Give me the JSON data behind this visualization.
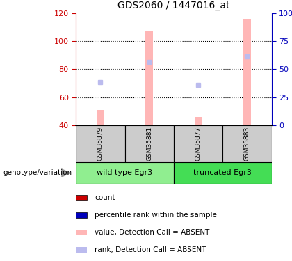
{
  "title": "GDS2060 / 1447016_at",
  "samples": [
    "GSM35879",
    "GSM35881",
    "GSM35877",
    "GSM35883"
  ],
  "groups": [
    {
      "name": "wild type Egr3",
      "color": "#90EE90"
    },
    {
      "name": "truncated Egr3",
      "color": "#44DD55"
    }
  ],
  "bar_values": [
    51,
    107,
    46,
    116
  ],
  "bar_base": 40,
  "rank_dots": [
    71,
    85,
    69,
    89
  ],
  "ylim_left": [
    40,
    120
  ],
  "ylim_right": [
    0,
    100
  ],
  "left_ticks": [
    40,
    60,
    80,
    100,
    120
  ],
  "right_ticks": [
    0,
    25,
    50,
    75,
    100
  ],
  "bar_color_absent": "#FFB6B6",
  "rank_color_absent": "#BBBBEE",
  "left_tick_color": "#CC0000",
  "right_tick_color": "#0000BB",
  "sample_box_color": "#CCCCCC",
  "legend_items": [
    {
      "color": "#CC0000",
      "label": "count"
    },
    {
      "color": "#0000BB",
      "label": "percentile rank within the sample"
    },
    {
      "color": "#FFB6B6",
      "label": "value, Detection Call = ABSENT"
    },
    {
      "color": "#BBBBEE",
      "label": "rank, Detection Call = ABSENT"
    }
  ],
  "genotype_label": "genotype/variation",
  "fig_width": 4.2,
  "fig_height": 3.75,
  "dpi": 100
}
